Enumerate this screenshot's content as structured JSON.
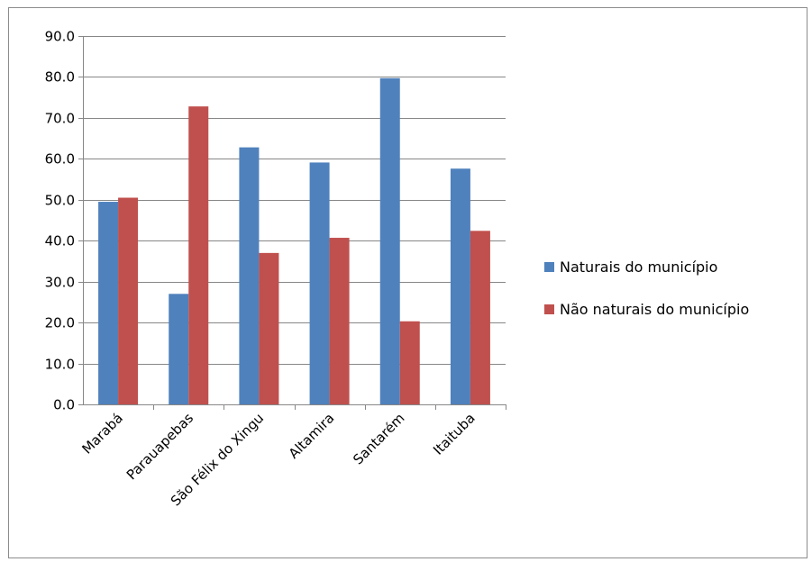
{
  "chart_data": {
    "type": "bar",
    "categories": [
      "Marabá",
      "Parauapebas",
      "São Félix do Xingu",
      "Altamira",
      "Santarém",
      "Itaituba"
    ],
    "series": [
      {
        "name": "Naturais do município",
        "color": "#4f81bd",
        "values": [
          49.5,
          27.0,
          62.8,
          59.1,
          79.7,
          57.6
        ]
      },
      {
        "name": "Não naturais do município",
        "color": "#c0504d",
        "values": [
          50.5,
          72.8,
          37.0,
          40.7,
          20.3,
          42.4
        ]
      }
    ],
    "ylim": [
      0,
      90
    ],
    "yticks": [
      "0.0",
      "10.0",
      "20.0",
      "30.0",
      "40.0",
      "50.0",
      "60.0",
      "70.0",
      "80.0",
      "90.0"
    ],
    "ytick_values": [
      0,
      10,
      20,
      30,
      40,
      50,
      60,
      70,
      80,
      90
    ],
    "grid": true,
    "legend": "right",
    "title": "",
    "xlabel": "",
    "ylabel": ""
  }
}
